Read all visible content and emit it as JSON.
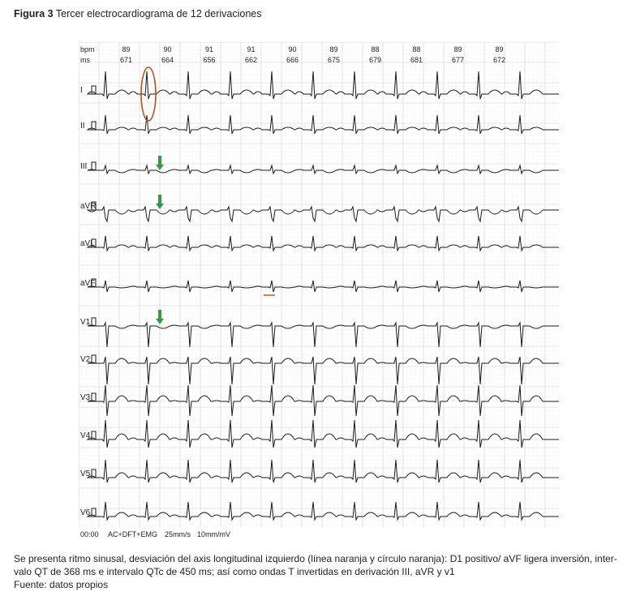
{
  "figure": {
    "label": "Figura 3",
    "title": "Tercer electrocardiograma de 12 derivaciones"
  },
  "ecg": {
    "header_labels": {
      "rate": "bpm",
      "interval": "ms"
    },
    "beats": [
      {
        "bpm": "89",
        "ms": "671"
      },
      {
        "bpm": "90",
        "ms": "664"
      },
      {
        "bpm": "91",
        "ms": "656"
      },
      {
        "bpm": "91",
        "ms": "662"
      },
      {
        "bpm": "90",
        "ms": "666"
      },
      {
        "bpm": "89",
        "ms": "675"
      },
      {
        "bpm": "88",
        "ms": "679"
      },
      {
        "bpm": "88",
        "ms": "681"
      },
      {
        "bpm": "89",
        "ms": "677"
      },
      {
        "bpm": "89",
        "ms": "672"
      }
    ],
    "leads": [
      "I",
      "II",
      "III",
      "aVR",
      "aVL",
      "aVF",
      "V1",
      "V2",
      "V3",
      "V4",
      "V5",
      "V6"
    ],
    "footer": {
      "time": "00:00",
      "filters": "AC+DFT+EMG",
      "speed": "25mm/s",
      "gain": "10mm/mV"
    },
    "colors": {
      "grid": "#cfcfcf",
      "trace": "#1a1a1a",
      "circle": "#b5541b",
      "orange_line": "#d9622a",
      "arrow": "#2e9e45"
    }
  },
  "caption": {
    "line1": "Se presenta ritmo sinusal, desviación del axis longitudinal izquierdo (línea naranja y círculo naranja): D1 positivo/ aVF ligera inversión, inter-",
    "line2": "valo QT de 368 ms e intervalo QTc de 450 ms; así como ondas T invertidas en derivación III, aVR y v1",
    "source": "Fuente: datos propios"
  }
}
